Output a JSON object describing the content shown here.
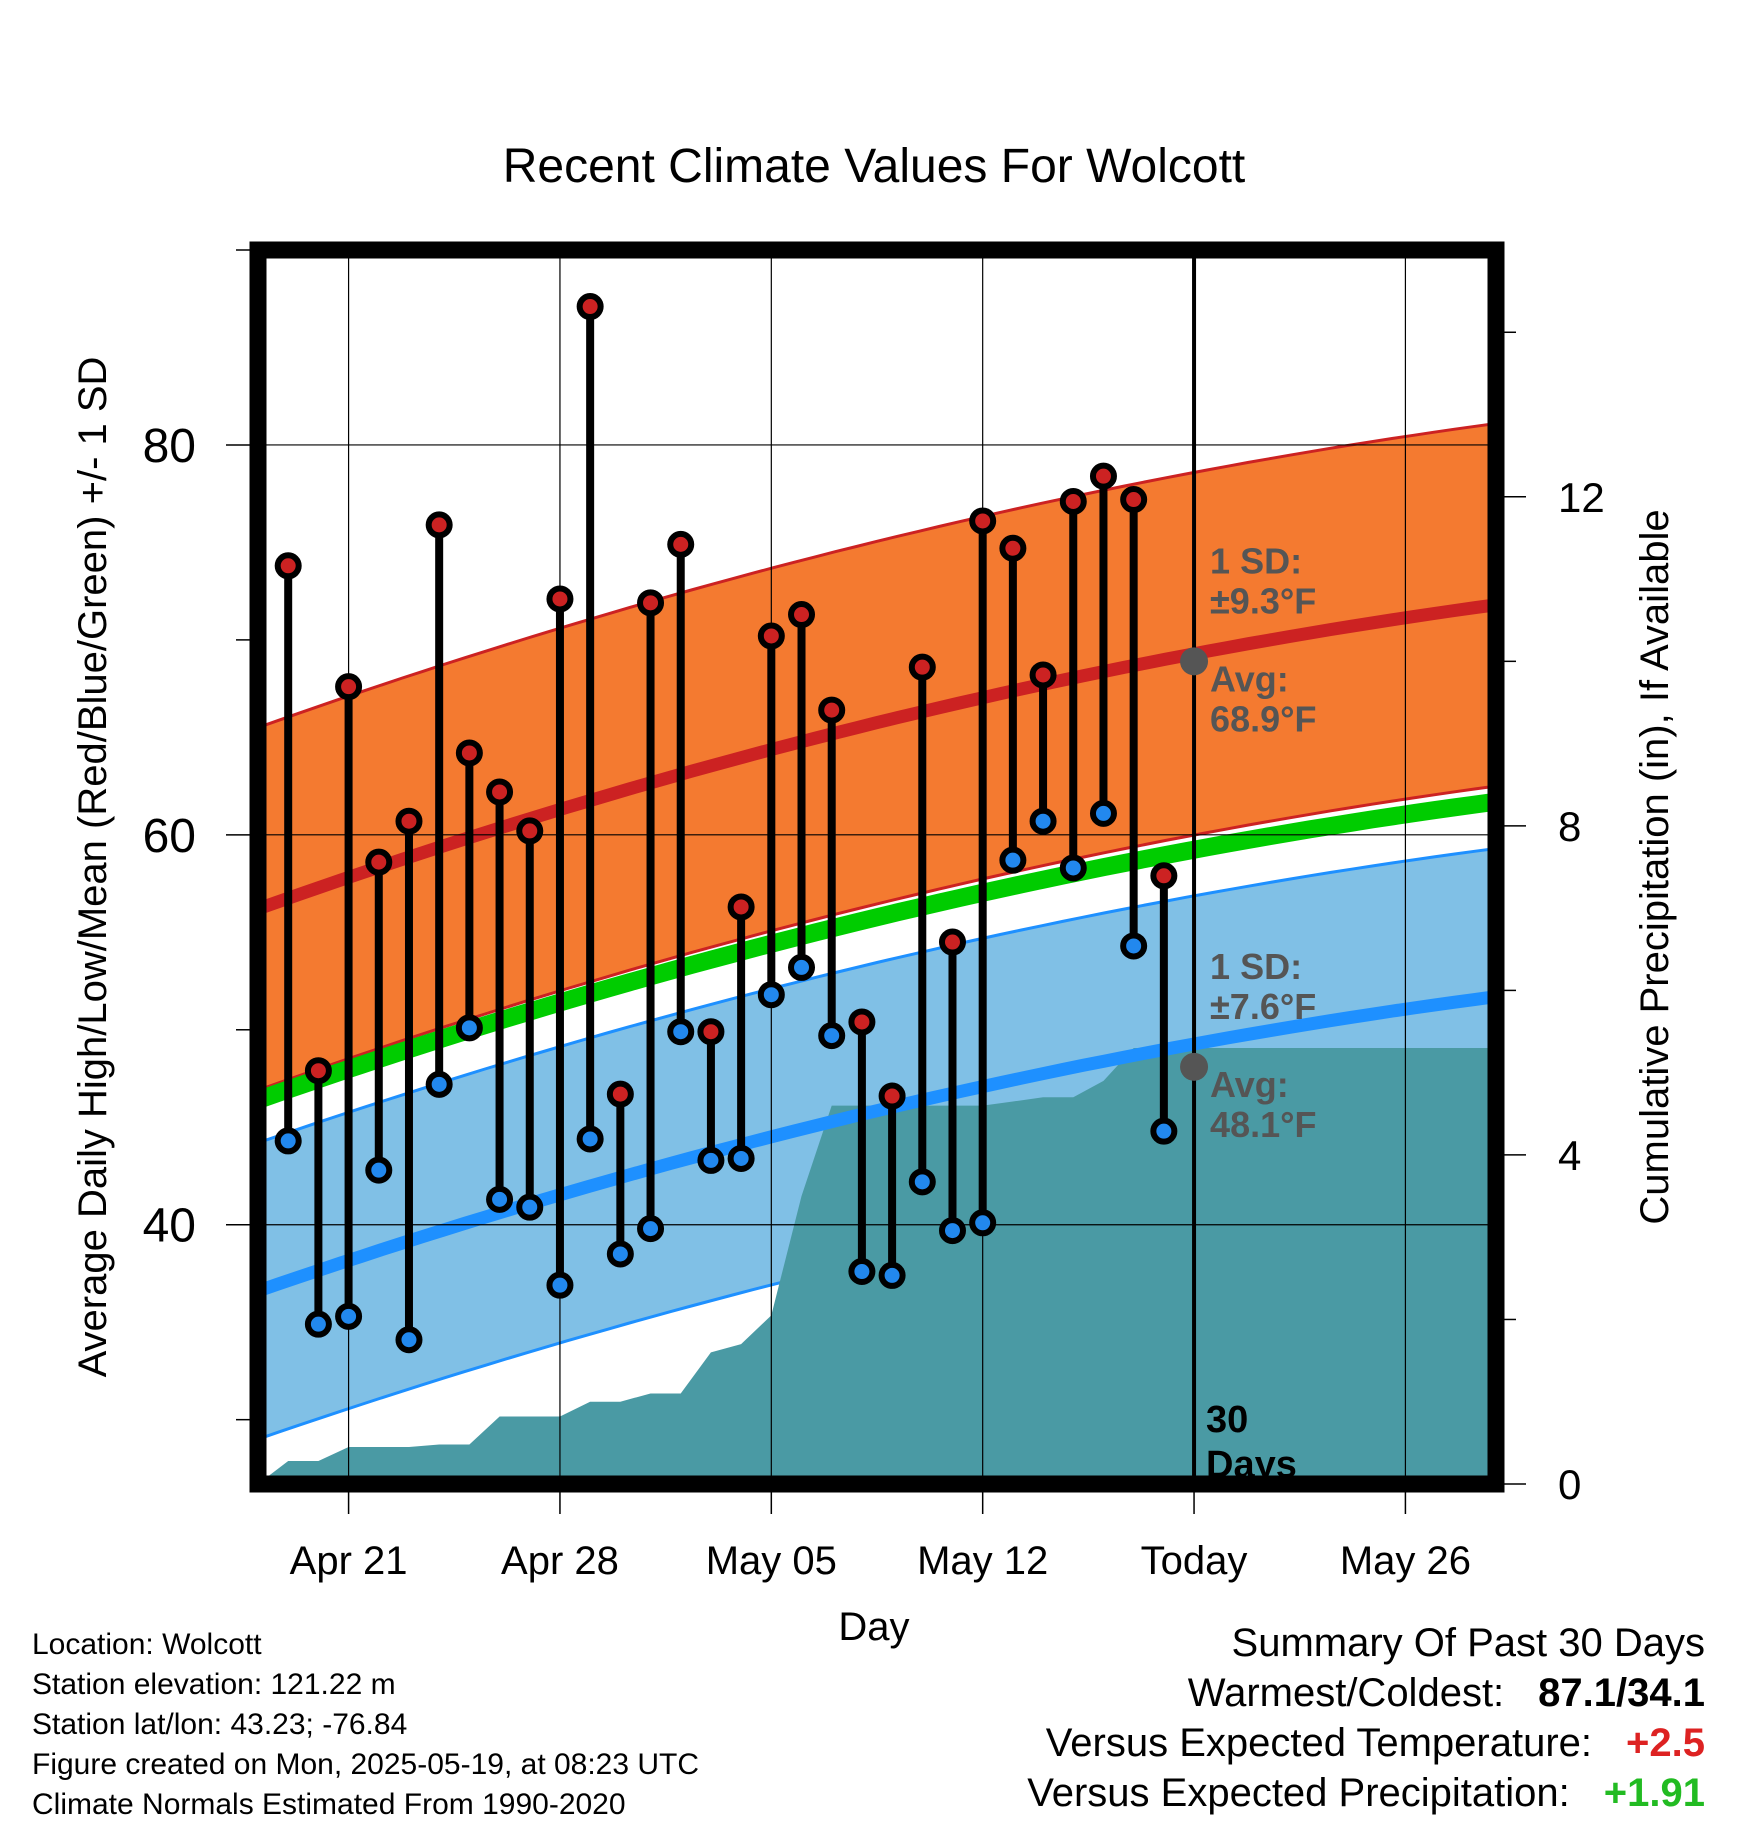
{
  "chart_data": {
    "type": "line",
    "title": "Recent Climate Values For Wolcott",
    "xlabel": "Day",
    "ylabel": "Average Daily High/Low/Mean (Red/Blue/Green) +/- 1 SD",
    "y2label": "Cumulative Precipitation (in), If Available",
    "ylim": [
      26.7,
      90
    ],
    "y2lim": [
      0,
      15
    ],
    "x_domain": [
      "2025-04-18",
      "2025-05-29"
    ],
    "y_ticks": [
      40,
      60,
      80
    ],
    "y2_ticks": [
      0,
      4,
      8,
      12
    ],
    "x_ticks": [
      {
        "date": "2025-04-21",
        "label": "Apr 21"
      },
      {
        "date": "2025-04-28",
        "label": "Apr 28"
      },
      {
        "date": "2025-05-05",
        "label": "May 05"
      },
      {
        "date": "2025-05-12",
        "label": "May 12"
      },
      {
        "date": "2025-05-19",
        "label": "Today"
      },
      {
        "date": "2025-05-26",
        "label": "May 26"
      }
    ],
    "today": "2025-05-19",
    "window_label": [
      "30",
      "Days"
    ],
    "normal_high": {
      "start": 56.2,
      "end": 71.8,
      "sd": 9.3,
      "today_avg": 68.9
    },
    "normal_low": {
      "start": 36.6,
      "end": 51.7,
      "sd": 7.6,
      "today_avg": 48.1
    },
    "normal_mean": {
      "start": 46.4,
      "end": 61.7
    },
    "annotations": {
      "high_sd": [
        "1 SD:",
        "±9.3°F"
      ],
      "high_avg": [
        "Avg:",
        "68.9°F"
      ],
      "low_sd": [
        "1 SD:",
        "±7.6°F"
      ],
      "low_avg": [
        "Avg:",
        "48.1°F"
      ]
    },
    "series": [
      {
        "name": "High",
        "color": "#cc2222",
        "x": [
          "2025-04-19",
          "2025-04-20",
          "2025-04-21",
          "2025-04-22",
          "2025-04-23",
          "2025-04-24",
          "2025-04-25",
          "2025-04-26",
          "2025-04-27",
          "2025-04-28",
          "2025-04-29",
          "2025-04-30",
          "2025-05-01",
          "2025-05-02",
          "2025-05-03",
          "2025-05-04",
          "2025-05-05",
          "2025-05-06",
          "2025-05-07",
          "2025-05-08",
          "2025-05-09",
          "2025-05-10",
          "2025-05-11",
          "2025-05-12",
          "2025-05-13",
          "2025-05-14",
          "2025-05-15",
          "2025-05-16",
          "2025-05-17",
          "2025-05-18"
        ],
        "values": [
          73.8,
          47.9,
          67.6,
          58.6,
          60.7,
          75.9,
          64.2,
          62.2,
          60.2,
          72.1,
          87.1,
          46.7,
          71.9,
          74.9,
          49.9,
          56.3,
          70.2,
          71.3,
          66.4,
          50.4,
          46.6,
          68.6,
          54.5,
          76.1,
          74.7,
          68.2,
          77.1,
          78.4,
          77.2,
          57.9
        ]
      },
      {
        "name": "Low",
        "color": "#2288ee",
        "x": [
          "2025-04-19",
          "2025-04-20",
          "2025-04-21",
          "2025-04-22",
          "2025-04-23",
          "2025-04-24",
          "2025-04-25",
          "2025-04-26",
          "2025-04-27",
          "2025-04-28",
          "2025-04-29",
          "2025-04-30",
          "2025-05-01",
          "2025-05-02",
          "2025-05-03",
          "2025-05-04",
          "2025-05-05",
          "2025-05-06",
          "2025-05-07",
          "2025-05-08",
          "2025-05-09",
          "2025-05-10",
          "2025-05-11",
          "2025-05-12",
          "2025-05-13",
          "2025-05-14",
          "2025-05-15",
          "2025-05-16",
          "2025-05-17",
          "2025-05-18"
        ],
        "values": [
          44.3,
          34.9,
          35.3,
          42.8,
          34.1,
          47.2,
          50.1,
          41.3,
          40.9,
          36.9,
          44.4,
          38.5,
          39.8,
          49.9,
          43.3,
          43.4,
          51.8,
          53.2,
          49.7,
          37.6,
          37.4,
          42.2,
          39.7,
          40.1,
          58.7,
          60.7,
          58.3,
          61.1,
          54.3,
          44.8
        ]
      },
      {
        "name": "Cumulative Precipitation",
        "color": "#4a9aa4",
        "x": [
          "2025-04-18",
          "2025-04-19",
          "2025-04-20",
          "2025-04-21",
          "2025-04-22",
          "2025-04-23",
          "2025-04-24",
          "2025-04-25",
          "2025-04-26",
          "2025-04-27",
          "2025-04-28",
          "2025-04-29",
          "2025-04-30",
          "2025-05-01",
          "2025-05-02",
          "2025-05-03",
          "2025-05-04",
          "2025-05-05",
          "2025-05-06",
          "2025-05-07",
          "2025-05-08",
          "2025-05-09",
          "2025-05-10",
          "2025-05-11",
          "2025-05-12",
          "2025-05-13",
          "2025-05-14",
          "2025-05-15",
          "2025-05-16",
          "2025-05-17",
          "2025-05-18",
          "2025-05-29"
        ],
        "values": [
          0.0,
          0.28,
          0.28,
          0.45,
          0.45,
          0.45,
          0.48,
          0.48,
          0.82,
          0.82,
          0.82,
          1.0,
          1.0,
          1.1,
          1.1,
          1.6,
          1.7,
          2.05,
          3.5,
          4.6,
          4.6,
          4.6,
          4.6,
          4.6,
          4.6,
          4.65,
          4.7,
          4.7,
          4.9,
          5.3,
          5.3,
          5.3
        ]
      }
    ]
  },
  "info": {
    "location": "Location: Wolcott",
    "elevation": "Station elevation: 121.22 m",
    "latlon": "Station lat/lon: 43.23; -76.84",
    "created": "Figure created on Mon, 2025-05-19, at 08:23 UTC",
    "normals": "Climate Normals Estimated From 1990-2020"
  },
  "summary": {
    "title": "Summary Of Past 30 Days",
    "warmest_label": "Warmest/Coldest:",
    "warmest_value": "87.1/34.1",
    "temp_label": "Versus Expected Temperature:",
    "temp_value": "+2.5",
    "temp_color": "#dd2222",
    "precip_label": "Versus Expected Precipitation:",
    "precip_value": "+1.91",
    "precip_color": "#22bb22"
  },
  "colors": {
    "high_band": "#f47a30",
    "high_line": "#cc2222",
    "low_band": "#80c0e6",
    "low_line": "#1e90ff",
    "mean_line": "#00cc00",
    "precip_fill": "#4a9aa4",
    "avg_marker": "#555555",
    "annotation_text": "#555555"
  }
}
